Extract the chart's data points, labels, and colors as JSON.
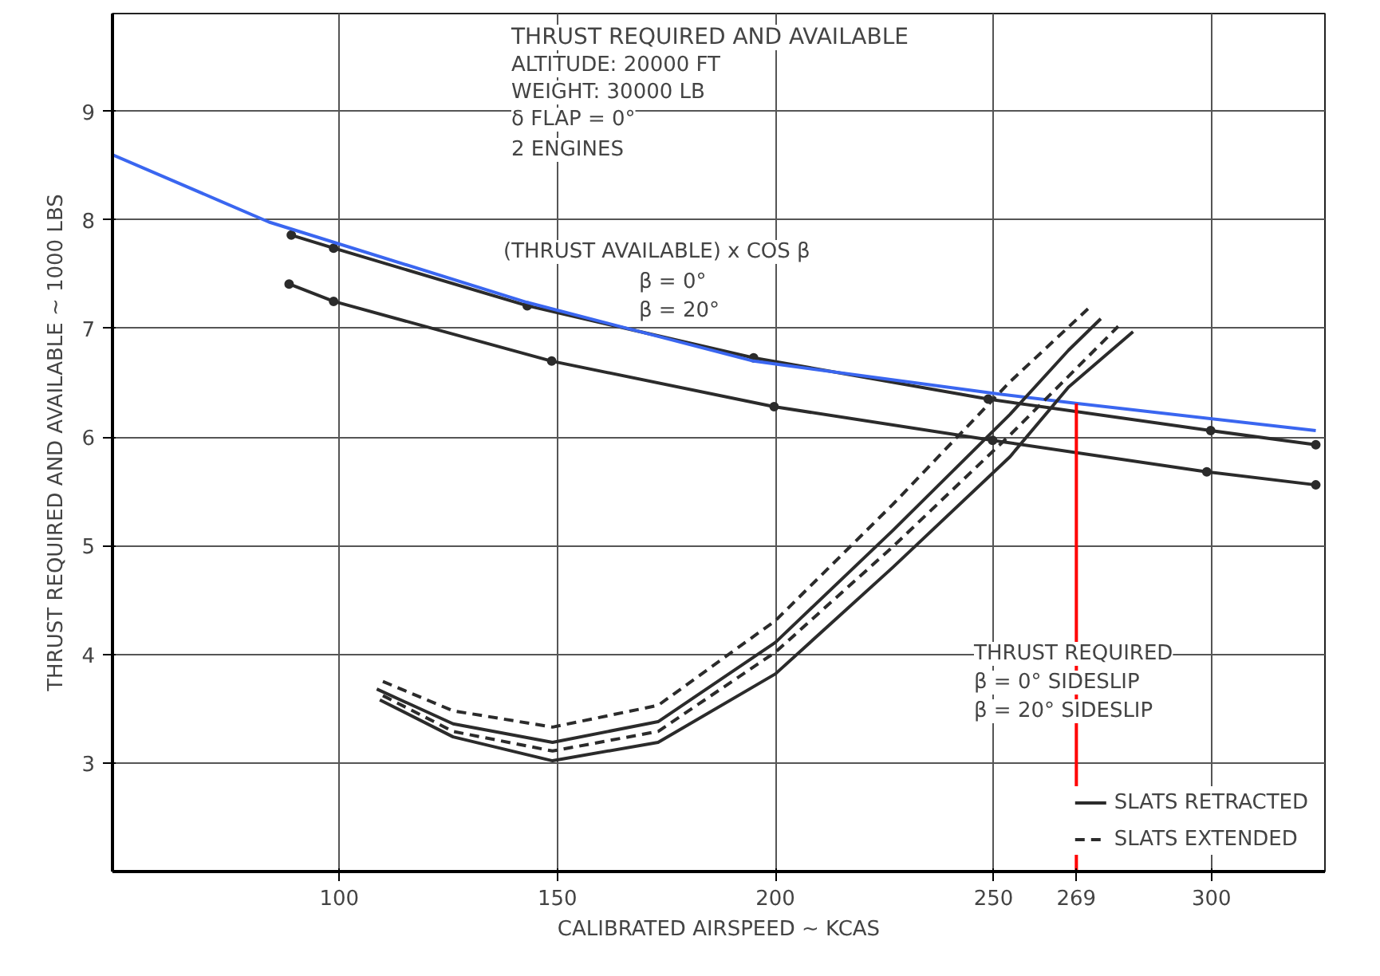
{
  "chart_data": {
    "type": "line",
    "title": "THRUST REQUIRED AND AVAILABLE",
    "xlabel": "CALIBRATED AIRSPEED ~ KCAS",
    "ylabel": "THRUST REQUIRED AND AVAILABLE ~ 1000 LBS",
    "xlim": [
      48,
      326
    ],
    "ylim": [
      2,
      9.9
    ],
    "xticks": [
      100,
      150,
      200,
      250,
      {
        "value": 269,
        "label": "269"
      },
      300
    ],
    "yticks": [
      3,
      4,
      5,
      6,
      7,
      8,
      9
    ],
    "grid": true,
    "legend": "bottom right",
    "series": [
      {
        "color": "#2b2b2b",
        "marker": "circle",
        "line_style": "solid",
        "x": [
          89,
          98.7,
          143.1,
          195,
          248.8,
          299.8,
          323.9
        ],
        "values": [
          7.86,
          7.74,
          7.21,
          6.73,
          6.35,
          6.06,
          5.93
        ]
      },
      {
        "color": "#2b2b2b",
        "marker": "circle",
        "line_style": "solid",
        "x": [
          88.5,
          98.7,
          148.7,
          199.7,
          249.8,
          298.9,
          323.9
        ],
        "values": [
          7.41,
          7.25,
          6.7,
          6.28,
          5.97,
          5.68,
          5.56
        ]
      },
      {
        "color": "#3a66f0",
        "line_style": "solid",
        "x": [
          48,
          83.9,
          143.1,
          195,
          250.7,
          269.2,
          323.9
        ],
        "values": [
          8.6,
          7.98,
          7.24,
          6.7,
          6.4,
          6.31,
          6.06
        ]
      },
      {
        "name": "SLATS RETRACTED",
        "color": "#2b2b2b",
        "line_style": "solid",
        "x": [
          109.3,
          126.1,
          148.9,
          173.1,
          200,
          226.9,
          253.8,
          267.2,
          282
        ],
        "values": [
          3.58,
          3.24,
          3.02,
          3.19,
          3.82,
          4.8,
          5.82,
          6.46,
          6.97
        ]
      },
      {
        "color": "#2b2b2b",
        "line_style": "solid",
        "x": [
          108.6,
          126.1,
          148.9,
          173.1,
          200,
          226.9,
          253.8,
          267.2,
          274.6
        ],
        "values": [
          3.68,
          3.36,
          3.19,
          3.38,
          4.11,
          5.14,
          6.21,
          6.8,
          7.09
        ]
      },
      {
        "name": "SLATS EXTENDED",
        "color": "#2b2b2b",
        "line_style": "dashed",
        "x": [
          110,
          126.1,
          148.9,
          173.1,
          200,
          226.9,
          253.8,
          278.6
        ],
        "values": [
          3.62,
          3.29,
          3.11,
          3.29,
          4.02,
          4.99,
          6.02,
          7.02
        ]
      },
      {
        "color": "#2b2b2b",
        "line_style": "dashed",
        "x": [
          110,
          126.1,
          148.9,
          173.1,
          200,
          226.9,
          253.8,
          271.9
        ],
        "values": [
          3.75,
          3.48,
          3.33,
          3.53,
          4.31,
          5.38,
          6.51,
          7.19
        ]
      },
      {
        "color": "#ff0000",
        "line_style": "solid",
        "x": [
          269,
          269
        ],
        "values": [
          6.31,
          2
        ]
      }
    ],
    "annotations": [
      "ALTITUDE: 20000 FT",
      "WEIGHT: 30000 LB",
      "δ FLAP = 0°",
      "2 ENGINES",
      "(THRUST AVAILABLE) x COS β",
      "β = 0°",
      "β = 20°",
      "THRUST REQUIRED",
      "β = 0° SIDESLIP",
      "β = 20° SIDESLIP"
    ]
  }
}
